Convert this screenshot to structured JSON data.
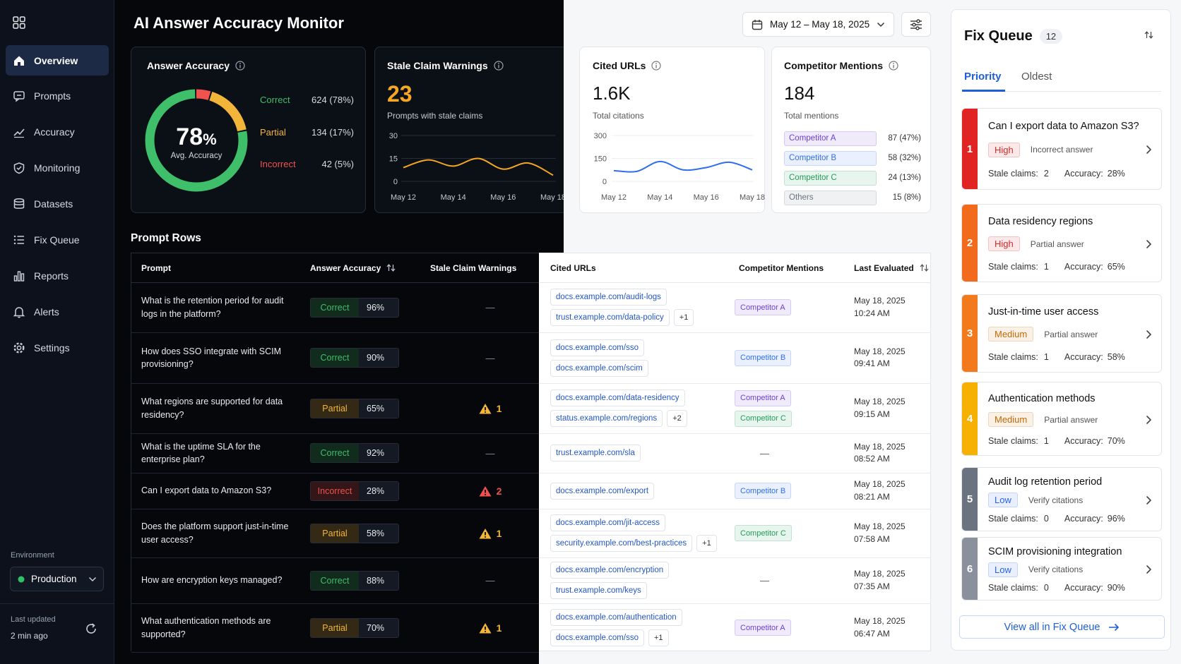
{
  "sidebar": {
    "nav": [
      "Overview",
      "Prompts",
      "Accuracy",
      "Monitoring",
      "Datasets",
      "Fix Queue",
      "Reports",
      "Alerts",
      "Settings"
    ],
    "environment_label": "Environment",
    "environment": "Production",
    "last_updated_label": "Last updated",
    "last_updated": "2 min ago"
  },
  "header": {
    "title": "AI Answer Accuracy Monitor",
    "date_range": "May 12 – May 18, 2025"
  },
  "cards": {
    "accuracy": {
      "title": "Answer Accuracy",
      "value": 78,
      "unit": "%",
      "caption": "Avg. Accuracy",
      "chart": {
        "type": "donut",
        "labels": [
          "Correct",
          "Partial",
          "Incorrect"
        ],
        "values": [
          78,
          17,
          5
        ],
        "value_labels": [
          "624 (78%)",
          "134 (17%)",
          "42 (5%)"
        ],
        "colors": [
          "#3fbf6a",
          "#f2b53a",
          "#f0524f"
        ]
      }
    },
    "stale": {
      "title": "Stale Claim Warnings",
      "value": 23,
      "caption": "Prompts with stale claims",
      "chart": {
        "type": "line",
        "categories": [
          "May 12",
          null,
          "May 14",
          null,
          "May 16",
          null,
          "May 18"
        ],
        "values": [
          9,
          14,
          10,
          15,
          8,
          12,
          4
        ],
        "ylim": [
          0,
          30
        ],
        "yticks": [
          0,
          15,
          30
        ],
        "color": "#f5a623"
      }
    },
    "cited": {
      "title": "Cited URLs",
      "value": "1.6K",
      "caption": "Total citations",
      "chart": {
        "type": "line",
        "categories": [
          "May 12",
          null,
          "May 14",
          null,
          "May 16",
          null,
          "May 18"
        ],
        "values": [
          70,
          65,
          130,
          75,
          90,
          125,
          75
        ],
        "ylim": [
          0,
          300
        ],
        "yticks": [
          0,
          150,
          300
        ],
        "color": "#2f6fed"
      }
    },
    "competitors": {
      "title": "Competitor Mentions",
      "value": 184,
      "caption": "Total mentions",
      "rows": [
        {
          "name": "Competitor A",
          "label": "87 (47%)",
          "color": "#6d3fd6"
        },
        {
          "name": "Competitor B",
          "label": "58 (32%)",
          "color": "#2f6fed"
        },
        {
          "name": "Competitor C",
          "label": "24 (13%)",
          "color": "#1f9d55"
        },
        {
          "name": "Others",
          "label": "15 (8%)",
          "color": "#6b7280"
        }
      ]
    }
  },
  "table": {
    "title": "Prompt Rows",
    "columns": [
      "Prompt",
      "Answer Accuracy",
      "Stale Claim Warnings",
      "Cited URLs",
      "Competitor Mentions",
      "Last Evaluated"
    ],
    "rows": [
      {
        "prompt": "What is the retention period for audit logs in the platform?",
        "status": "Correct",
        "accuracy": "96%",
        "stale": "—",
        "urls": [
          "docs.example.com/audit-logs",
          "trust.example.com/data-policy"
        ],
        "more": "+1",
        "competitors": [
          "Competitor A"
        ],
        "date": "May 18, 2025",
        "time": "10:24 AM"
      },
      {
        "prompt": "How does SSO integrate with SCIM provisioning?",
        "status": "Correct",
        "accuracy": "90%",
        "stale": "—",
        "urls": [
          "docs.example.com/sso",
          "docs.example.com/scim"
        ],
        "competitors": [
          "Competitor B"
        ],
        "date": "May 18, 2025",
        "time": "09:41 AM"
      },
      {
        "prompt": "What regions are supported for data residency?",
        "status": "Partial",
        "accuracy": "65%",
        "stale": 1,
        "urls": [
          "docs.example.com/data-residency",
          "status.example.com/regions"
        ],
        "more": "+2",
        "competitors": [
          "Competitor A",
          "Competitor C"
        ],
        "date": "May 18, 2025",
        "time": "09:15 AM"
      },
      {
        "prompt": "What is the uptime SLA for the enterprise plan?",
        "status": "Correct",
        "accuracy": "92%",
        "stale": "—",
        "urls": [
          "trust.example.com/sla"
        ],
        "competitors": "—",
        "date": "May 18, 2025",
        "time": "08:52 AM"
      },
      {
        "prompt": "Can I export data to Amazon S3?",
        "status": "Incorrect",
        "accuracy": "28%",
        "stale": 2,
        "urls": [
          "docs.example.com/export"
        ],
        "competitors": [
          "Competitor B"
        ],
        "date": "May 18, 2025",
        "time": "08:21 AM"
      },
      {
        "prompt": "Does the platform support just-in-time user access?",
        "status": "Partial",
        "accuracy": "58%",
        "stale": 1,
        "urls": [
          "docs.example.com/jit-access",
          "security.example.com/best-practices"
        ],
        "more": "+1",
        "competitors": [
          "Competitor C"
        ],
        "date": "May 18, 2025",
        "time": "07:58 AM"
      },
      {
        "prompt": "How are encryption keys managed?",
        "status": "Correct",
        "accuracy": "88%",
        "stale": "—",
        "urls": [
          "docs.example.com/encryption",
          "trust.example.com/keys"
        ],
        "competitors": "—",
        "date": "May 18, 2025",
        "time": "07:35 AM"
      },
      {
        "prompt": "What authentication methods are supported?",
        "status": "Partial",
        "accuracy": "70%",
        "stale": 1,
        "urls": [
          "docs.example.com/authentication",
          "docs.example.com/sso"
        ],
        "more": "+1",
        "competitors": [
          "Competitor A"
        ],
        "date": "May 18, 2025",
        "time": "06:47 AM"
      }
    ]
  },
  "fix_queue": {
    "title": "Fix Queue",
    "count": 12,
    "tabs": [
      "Priority",
      "Oldest"
    ],
    "stale_label": "Stale claims:",
    "accuracy_label": "Accuracy:",
    "footer": "View all in Fix Queue",
    "items": [
      {
        "rank": 1,
        "title": "Can I export data to Amazon S3?",
        "priority": "High",
        "issue": "Incorrect answer",
        "stale": 2,
        "accuracy": "28%",
        "color": "#e02424",
        "priority_color": "#d42a2a"
      },
      {
        "rank": 2,
        "title": "Data residency regions",
        "priority": "High",
        "issue": "Partial answer",
        "stale": 1,
        "accuracy": "65%",
        "color": "#f26b1d",
        "priority_color": "#d42a2a"
      },
      {
        "rank": 3,
        "title": "Just-in-time user access",
        "priority": "Medium",
        "issue": "Partial answer",
        "stale": 1,
        "accuracy": "58%",
        "color": "#f27a1d",
        "priority_color": "#c26a05"
      },
      {
        "rank": 4,
        "title": "Authentication methods",
        "priority": "Medium",
        "issue": "Partial answer",
        "stale": 1,
        "accuracy": "70%",
        "color": "#f5b000",
        "priority_color": "#c26a05"
      },
      {
        "rank": 5,
        "title": "Audit log retention period",
        "priority": "Low",
        "issue": "Verify citations",
        "stale": 0,
        "accuracy": "96%",
        "color": "#6b7280",
        "priority_color": "#2563eb"
      },
      {
        "rank": 6,
        "title": "SCIM provisioning integration",
        "priority": "Low",
        "issue": "Verify citations",
        "stale": 0,
        "accuracy": "90%",
        "color": "#8a919c",
        "priority_color": "#2563eb"
      }
    ]
  }
}
